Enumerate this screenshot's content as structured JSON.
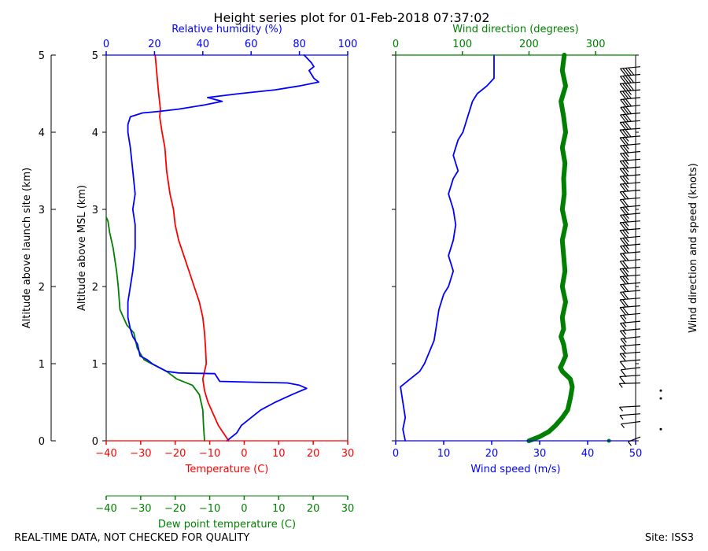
{
  "title": "Height series plot for 01-Feb-2018 07:37:02",
  "footer_left": "REAL-TIME DATA, NOT CHECKED FOR QUALITY",
  "footer_right": "Site: ISS3",
  "colors": {
    "temperature": "#ff0000",
    "dewpoint": "#008000",
    "rh": "#0000ff",
    "wind_speed": "#0000ff",
    "wind_dir": "#008000",
    "barbs": "#000000"
  },
  "chart_data": [
    {
      "type": "line",
      "panel": "thermodynamic",
      "ylabel_outer": "Altitude above launch site (km)",
      "ylabel_inner": "Altitude above MSL (km)",
      "ylim": [
        0,
        5
      ],
      "yticks": [
        0,
        1,
        2,
        3,
        4,
        5
      ],
      "x_axes": [
        {
          "id": "temperature",
          "label": "Temperature (C)",
          "position": "bottom",
          "lim": [
            -40,
            30
          ],
          "ticks": [
            -40,
            -30,
            -20,
            -10,
            0,
            10,
            20,
            30
          ],
          "color": "#ff0000"
        },
        {
          "id": "dewpoint",
          "label": "Dew point temperature (C)",
          "position": "bottom-offset",
          "lim": [
            -40,
            30
          ],
          "ticks": [
            -40,
            -30,
            -20,
            -10,
            0,
            10,
            20,
            30
          ],
          "color": "#008000"
        },
        {
          "id": "rh",
          "label": "Relative humidity (%)",
          "position": "top",
          "lim": [
            0,
            100
          ],
          "ticks": [
            0,
            20,
            40,
            60,
            80,
            100
          ],
          "color": "#0000ff"
        }
      ],
      "series": [
        {
          "name": "Temperature (C)",
          "axis": "temperature",
          "color": "#ff0000",
          "points": [
            [
              -4.5,
              0
            ],
            [
              -6,
              0.1
            ],
            [
              -7.5,
              0.2
            ],
            [
              -9,
              0.35
            ],
            [
              -10.5,
              0.5
            ],
            [
              -11.5,
              0.65
            ],
            [
              -12,
              0.8
            ],
            [
              -11.5,
              0.9
            ],
            [
              -11,
              1.0
            ],
            [
              -11.2,
              1.2
            ],
            [
              -11.5,
              1.4
            ],
            [
              -12,
              1.6
            ],
            [
              -13,
              1.8
            ],
            [
              -14.5,
              2.0
            ],
            [
              -16,
              2.2
            ],
            [
              -17.5,
              2.4
            ],
            [
              -19,
              2.6
            ],
            [
              -20,
              2.8
            ],
            [
              -20.5,
              3.0
            ],
            [
              -21.5,
              3.2
            ],
            [
              -22.5,
              3.5
            ],
            [
              -23,
              3.8
            ],
            [
              -23.8,
              4.0
            ],
            [
              -24.5,
              4.2
            ],
            [
              -24.3,
              4.3
            ],
            [
              -24.8,
              4.5
            ],
            [
              -25.2,
              4.7
            ],
            [
              -25.5,
              4.85
            ],
            [
              -25.8,
              5.0
            ]
          ]
        },
        {
          "name": "Dew point temperature (C)",
          "axis": "dewpoint",
          "color": "#008000",
          "points": [
            [
              -11.5,
              0
            ],
            [
              -11.8,
              0.2
            ],
            [
              -12,
              0.4
            ],
            [
              -13,
              0.6
            ],
            [
              -15,
              0.72
            ],
            [
              -19.5,
              0.8
            ],
            [
              -22.5,
              0.9
            ],
            [
              -26,
              0.98
            ],
            [
              -29,
              1.05
            ],
            [
              -31,
              1.2
            ],
            [
              -32,
              1.4
            ],
            [
              -34,
              1.5
            ],
            [
              -36,
              1.7
            ],
            [
              -36.5,
              2.0
            ],
            [
              -37,
              2.2
            ],
            [
              -38,
              2.5
            ],
            [
              -39,
              2.7
            ],
            [
              -39.5,
              2.85
            ],
            [
              -40,
              2.9
            ]
          ]
        },
        {
          "name": "Relative humidity (%)",
          "axis": "rh",
          "color": "#0000ff",
          "points": [
            [
              50,
              0
            ],
            [
              52,
              0.05
            ],
            [
              54,
              0.1
            ],
            [
              56,
              0.2
            ],
            [
              60,
              0.3
            ],
            [
              64,
              0.4
            ],
            [
              70,
              0.5
            ],
            [
              77,
              0.6
            ],
            [
              83,
              0.68
            ],
            [
              80,
              0.72
            ],
            [
              75,
              0.75
            ],
            [
              60,
              0.76
            ],
            [
              47,
              0.77
            ],
            [
              46,
              0.82
            ],
            [
              45,
              0.87
            ],
            [
              30,
              0.88
            ],
            [
              25,
              0.9
            ],
            [
              22,
              0.95
            ],
            [
              19,
              1.0
            ],
            [
              17,
              1.05
            ],
            [
              14,
              1.1
            ],
            [
              13,
              1.25
            ],
            [
              11,
              1.35
            ],
            [
              10,
              1.45
            ],
            [
              9,
              1.6
            ],
            [
              9,
              1.8
            ],
            [
              10,
              2.0
            ],
            [
              11,
              2.2
            ],
            [
              12,
              2.5
            ],
            [
              12,
              2.8
            ],
            [
              11,
              3.0
            ],
            [
              12,
              3.2
            ],
            [
              11,
              3.5
            ],
            [
              10,
              3.8
            ],
            [
              9,
              4.0
            ],
            [
              9,
              4.1
            ],
            [
              10,
              4.2
            ],
            [
              15,
              4.25
            ],
            [
              22,
              4.27
            ],
            [
              30,
              4.3
            ],
            [
              40,
              4.35
            ],
            [
              48,
              4.4
            ],
            [
              42,
              4.45
            ],
            [
              55,
              4.5
            ],
            [
              70,
              4.55
            ],
            [
              80,
              4.6
            ],
            [
              88,
              4.65
            ],
            [
              86,
              4.7
            ],
            [
              84,
              4.8
            ],
            [
              86,
              4.85
            ],
            [
              85,
              4.9
            ],
            [
              82,
              5.0
            ]
          ]
        }
      ]
    },
    {
      "type": "line",
      "panel": "wind",
      "ylim": [
        0,
        5
      ],
      "yticks": [
        0,
        1,
        2,
        3,
        4,
        5
      ],
      "x_axes": [
        {
          "id": "wind_speed",
          "label": "Wind speed (m/s)",
          "position": "bottom",
          "lim": [
            0,
            50
          ],
          "ticks": [
            0,
            10,
            20,
            30,
            40,
            50
          ],
          "color": "#0000ff"
        },
        {
          "id": "wind_dir",
          "label": "Wind direction (degrees)",
          "position": "top",
          "lim": [
            0,
            360
          ],
          "ticks": [
            0,
            100,
            200,
            300
          ],
          "color": "#008000"
        }
      ],
      "series": [
        {
          "name": "Wind speed (m/s)",
          "axis": "wind_speed",
          "color": "#0000ff",
          "points": [
            [
              2,
              0
            ],
            [
              1.5,
              0.15
            ],
            [
              2,
              0.3
            ],
            [
              1.5,
              0.5
            ],
            [
              1,
              0.7
            ],
            [
              3,
              0.8
            ],
            [
              5,
              0.9
            ],
            [
              6,
              1.0
            ],
            [
              7,
              1.15
            ],
            [
              8,
              1.3
            ],
            [
              8.5,
              1.5
            ],
            [
              9,
              1.7
            ],
            [
              10,
              1.9
            ],
            [
              11,
              2.0
            ],
            [
              12,
              2.2
            ],
            [
              11,
              2.4
            ],
            [
              12,
              2.6
            ],
            [
              12.5,
              2.8
            ],
            [
              12,
              3.0
            ],
            [
              11,
              3.2
            ],
            [
              12,
              3.4
            ],
            [
              13,
              3.5
            ],
            [
              12,
              3.7
            ],
            [
              13,
              3.9
            ],
            [
              14,
              4.0
            ],
            [
              15,
              4.2
            ],
            [
              16,
              4.4
            ],
            [
              17,
              4.5
            ],
            [
              19,
              4.6
            ],
            [
              20.5,
              4.7
            ],
            [
              20.5,
              4.9
            ],
            [
              20.5,
              5.0
            ]
          ]
        },
        {
          "name": "Wind direction (degrees)",
          "axis": "wind_dir",
          "color": "#008000",
          "points": [
            [
              200,
              0
            ],
            [
              215,
              0.05
            ],
            [
              230,
              0.12
            ],
            [
              240,
              0.2
            ],
            [
              250,
              0.3
            ],
            [
              258,
              0.4
            ],
            [
              262,
              0.55
            ],
            [
              265,
              0.7
            ],
            [
              262,
              0.8
            ],
            [
              250,
              0.9
            ],
            [
              247,
              0.95
            ],
            [
              250,
              1.0
            ],
            [
              255,
              1.1
            ],
            [
              252,
              1.25
            ],
            [
              248,
              1.35
            ],
            [
              252,
              1.45
            ],
            [
              250,
              1.6
            ],
            [
              255,
              1.8
            ],
            [
              250,
              2.0
            ],
            [
              254,
              2.2
            ],
            [
              252,
              2.4
            ],
            [
              250,
              2.6
            ],
            [
              255,
              2.8
            ],
            [
              250,
              3.0
            ],
            [
              253,
              3.2
            ],
            [
              252,
              3.4
            ],
            [
              254,
              3.6
            ],
            [
              250,
              3.8
            ],
            [
              255,
              4.0
            ],
            [
              252,
              4.2
            ],
            [
              248,
              4.4
            ],
            [
              255,
              4.6
            ],
            [
              250,
              4.8
            ],
            [
              253,
              5.0
            ]
          ]
        },
        {
          "name": "Wind direction (degrees)",
          "axis": "wind_dir",
          "color": "#008000",
          "marker": true,
          "points": [
            [
              320,
              0
            ]
          ]
        }
      ]
    },
    {
      "type": "barbs",
      "panel": "barbs",
      "ylabel": "Wind direction and speed (knots)",
      "ylim": [
        0,
        5
      ]
    }
  ]
}
